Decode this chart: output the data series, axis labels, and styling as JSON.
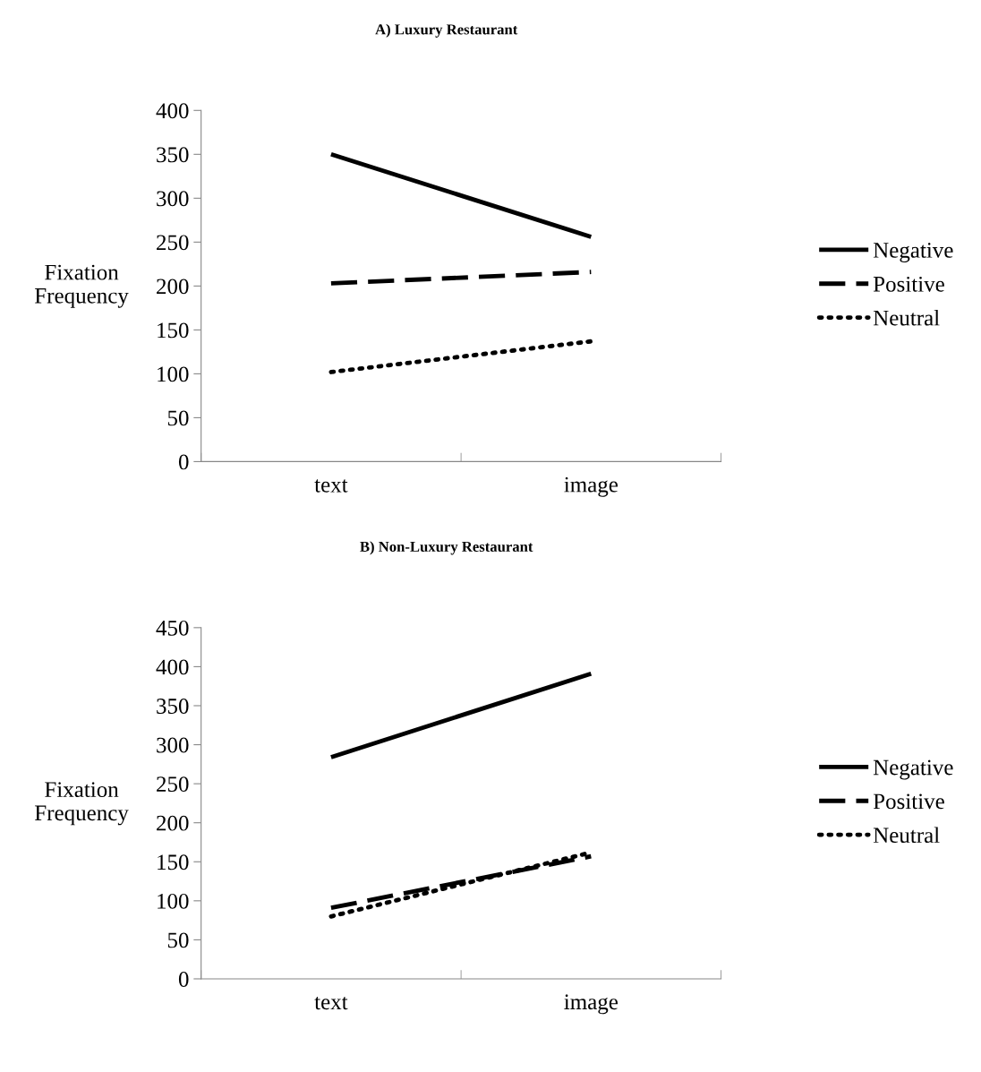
{
  "chart_data": [
    {
      "type": "line",
      "title": "A) Luxury Restaurant",
      "ylabel": "Fixation\nFrequency",
      "categories": [
        "text",
        "image"
      ],
      "ylim": [
        0,
        400
      ],
      "yticks": [
        0,
        50,
        100,
        150,
        200,
        250,
        300,
        350,
        400
      ],
      "legend": "right",
      "grid": false,
      "series": [
        {
          "name": "Negative",
          "color": "#000000",
          "line_style": "solid",
          "values": [
            350,
            256
          ]
        },
        {
          "name": "Positive",
          "color": "#000000",
          "line_style": "dashed",
          "values": [
            203,
            216
          ]
        },
        {
          "name": "Neutral",
          "color": "#000000",
          "line_style": "dotted",
          "values": [
            102,
            137
          ]
        }
      ]
    },
    {
      "type": "line",
      "title": "B) Non-Luxury Restaurant",
      "ylabel": "Fixation\nFrequency",
      "categories": [
        "text",
        "image"
      ],
      "ylim": [
        0,
        450
      ],
      "yticks": [
        0,
        50,
        100,
        150,
        200,
        250,
        300,
        350,
        400,
        450
      ],
      "legend": "right",
      "grid": false,
      "series": [
        {
          "name": "Negative",
          "color": "#000000",
          "line_style": "solid",
          "values": [
            284,
            391
          ]
        },
        {
          "name": "Positive",
          "color": "#000000",
          "line_style": "dashed",
          "values": [
            91,
            157
          ]
        },
        {
          "name": "Neutral",
          "color": "#000000",
          "line_style": "dotted",
          "values": [
            80,
            162
          ]
        }
      ]
    }
  ]
}
